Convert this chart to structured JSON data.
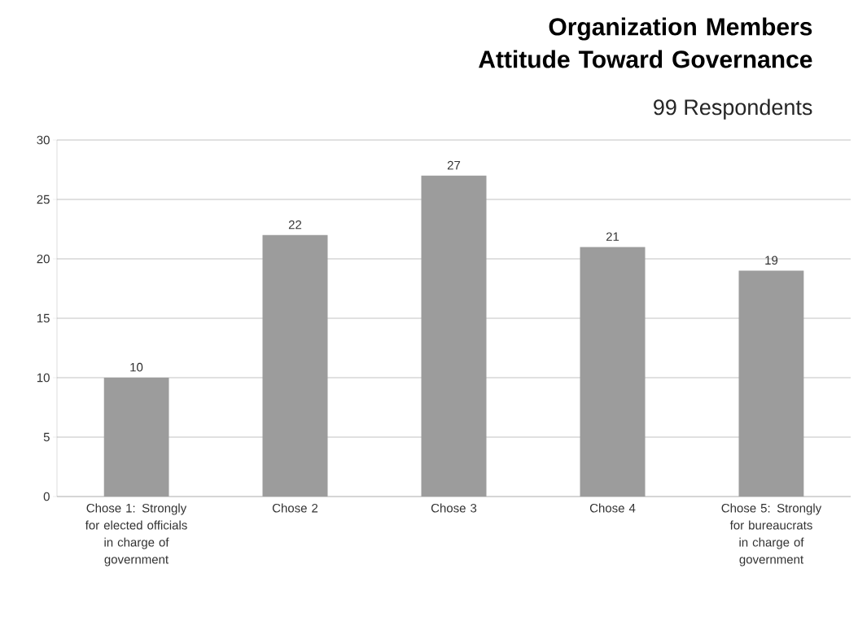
{
  "chart_data": {
    "type": "bar",
    "title": "Organization Members Attitude Toward Governance",
    "subtitle": "99 Respondents",
    "categories": [
      "Chose 1: Strongly for elected officials in charge of government",
      "Chose 2",
      "Chose 3",
      "Chose 4",
      "Chose 5: Strongly for bureaucrats in charge of government"
    ],
    "values": [
      10,
      22,
      27,
      21,
      19
    ],
    "color": "#9c9c9c",
    "ylim": [
      0,
      30
    ],
    "yticks": [
      0,
      5,
      10,
      15,
      20,
      25,
      30
    ],
    "grid": "y",
    "data_labels": true
  }
}
